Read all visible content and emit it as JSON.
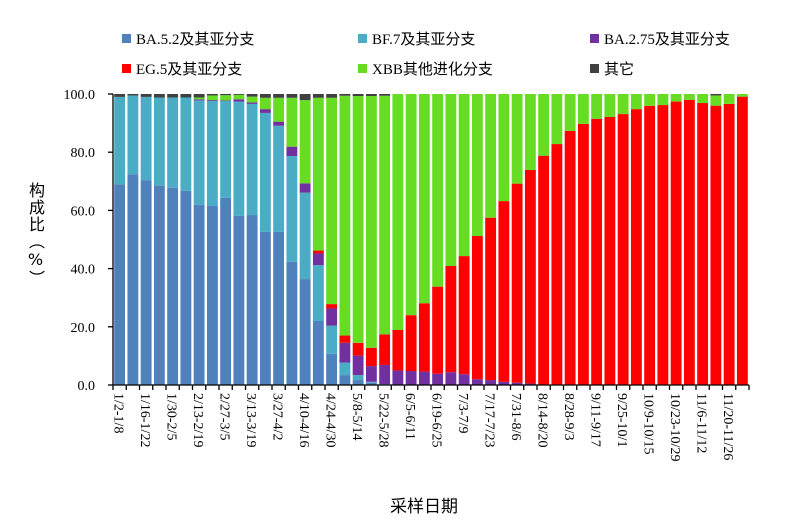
{
  "chart_data": {
    "type": "bar",
    "stacked": true,
    "xlabel": "采样日期",
    "ylabel": "构成比（%）",
    "ylim": [
      0,
      100
    ],
    "yticks": [
      "0.0",
      "20.0",
      "40.0",
      "60.0",
      "80.0",
      "100.0"
    ],
    "grid": false,
    "legend_position": "top",
    "tick_labels": [
      "1/2-1/8",
      "1/16-1/22",
      "1/30-2/5",
      "2/13-2/19",
      "2/27-3/5",
      "3/13-3/19",
      "3/27-4/2",
      "4/10-4/16",
      "4/24-4/30",
      "5/8-5/14",
      "5/22-5/28",
      "6/5-6/11",
      "6/19-6/25",
      "7/3-7/9",
      "7/17-7/23",
      "7/31-8/6",
      "8/14-8/20",
      "8/28-9/3",
      "9/11-9/17",
      "9/25-10/1",
      "10/9-10/15",
      "10/23-10/29",
      "11/6-11/12",
      "11/20-11/26"
    ],
    "num_bars": 48,
    "series": [
      {
        "name": "BA.5.2及其亚分支",
        "color": "#4f81bd",
        "values": [
          69,
          72.4,
          70.4,
          68.5,
          67.8,
          66.7,
          61.9,
          61.5,
          64.3,
          58.1,
          58.4,
          52.6,
          52.6,
          42.3,
          36.4,
          22.0,
          10.7,
          3.4,
          1.7,
          0.8,
          0.3,
          0,
          0,
          0,
          0,
          0,
          0,
          0,
          0,
          0,
          0,
          0,
          0,
          0,
          0,
          0,
          0,
          0,
          0,
          0,
          0,
          0,
          0,
          0,
          0,
          0,
          0,
          0
        ]
      },
      {
        "name": "BF.7及其亚分支",
        "color": "#4bacc6",
        "values": [
          30,
          27.1,
          28.6,
          30.3,
          31.0,
          32.1,
          35.9,
          36.1,
          33.3,
          39.3,
          38.2,
          40.9,
          36.5,
          36.4,
          29.7,
          19.2,
          9.7,
          4.3,
          1.7,
          0.3,
          0,
          0,
          0,
          0,
          0,
          0,
          0,
          0,
          0,
          0,
          0,
          0,
          0,
          0,
          0,
          0,
          0,
          0,
          0,
          0,
          0,
          0,
          0,
          0,
          0,
          0,
          0,
          0
        ]
      },
      {
        "name": "BA.2.75及其亚分支",
        "color": "#7030a0",
        "values": [
          0,
          0,
          0,
          0,
          0,
          0,
          0.4,
          0.3,
          0.2,
          0.8,
          0.5,
          1.3,
          1.4,
          3.2,
          3.2,
          4.0,
          5.9,
          6.8,
          6.7,
          5.4,
          6.6,
          5.0,
          4.8,
          4.6,
          3.9,
          4.4,
          3.7,
          2.0,
          1.7,
          1.1,
          0.8,
          0.5,
          0,
          0,
          0,
          0,
          0,
          0,
          0,
          0,
          0,
          0,
          0,
          0,
          0,
          0,
          0,
          0
        ]
      },
      {
        "name": "EG.5及其亚分支",
        "color": "#ff0000",
        "values": [
          0,
          0,
          0,
          0,
          0,
          0,
          0,
          0,
          0,
          0,
          0,
          0,
          0,
          0,
          0,
          1.0,
          1.5,
          2.5,
          4.4,
          6.3,
          10.5,
          13.9,
          19.2,
          23.5,
          29.9,
          36.5,
          40.6,
          49.2,
          55.8,
          62.1,
          68.4,
          73.4,
          78.8,
          82.8,
          87.3,
          89.7,
          91.5,
          92.1,
          93.1,
          94.8,
          95.9,
          96.2,
          97.4,
          98.0,
          96.9,
          96.0,
          96.6,
          99.1
        ]
      },
      {
        "name": "XBB其他进化分支",
        "color": "#66dd22",
        "values": [
          0,
          0,
          0,
          0,
          0,
          0,
          0.6,
          1.6,
          1.8,
          1.5,
          2.0,
          3.9,
          8.2,
          16.8,
          28.6,
          52.5,
          70.9,
          82.4,
          84.8,
          86.5,
          82.0,
          81.1,
          76.0,
          71.9,
          66.2,
          59.1,
          55.7,
          48.8,
          42.5,
          36.8,
          30.8,
          26.1,
          21.2,
          17.2,
          12.7,
          10.3,
          8.5,
          7.9,
          6.9,
          5.2,
          4.1,
          3.8,
          2.6,
          2.0,
          3.1,
          3.5,
          3.4,
          0.9
        ]
      },
      {
        "name": "其它",
        "color": "#404040",
        "values": [
          1,
          0.5,
          1.0,
          1.2,
          1.2,
          1.2,
          1.2,
          0.5,
          0.4,
          0.3,
          0.9,
          1.3,
          1.3,
          1.3,
          2.1,
          1.3,
          1.3,
          0.6,
          0.7,
          0.7,
          0.6,
          0,
          0,
          0,
          0,
          0,
          0,
          0,
          0,
          0,
          0,
          0,
          0,
          0,
          0,
          0,
          0,
          0,
          0,
          0,
          0,
          0,
          0,
          0,
          0,
          0.5,
          0,
          0
        ]
      }
    ]
  }
}
